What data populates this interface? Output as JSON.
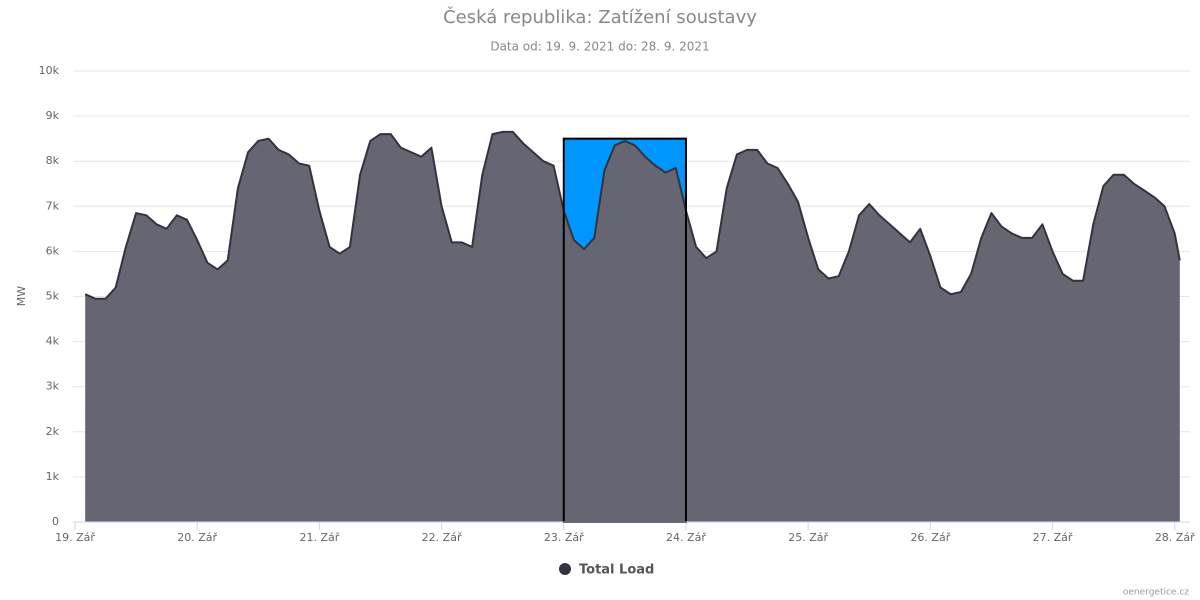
{
  "chart_data": {
    "type": "area",
    "title": "Česká republika: Zatížení soustavy",
    "subtitle": "Data od: 19. 9. 2021 do: 28. 9. 2021",
    "y_label": "MW",
    "credits": "oenergetice.cz",
    "grid": true,
    "legend": "bottom",
    "xlim": [
      0,
      219
    ],
    "xticks": [
      {
        "value": 0,
        "label": "19. Zář"
      },
      {
        "value": 24,
        "label": "20. Zář"
      },
      {
        "value": 48,
        "label": "21. Zář"
      },
      {
        "value": 72,
        "label": "22. Zář"
      },
      {
        "value": 96,
        "label": "23. Zář"
      },
      {
        "value": 120,
        "label": "24. Zář"
      },
      {
        "value": 144,
        "label": "25. Zář"
      },
      {
        "value": 168,
        "label": "26. Zář"
      },
      {
        "value": 192,
        "label": "27. Zář"
      },
      {
        "value": 216,
        "label": "28. Zář"
      }
    ],
    "ylim": [
      0,
      10000
    ],
    "yticks": [
      0,
      {
        "value": 1000,
        "label": "1k"
      },
      {
        "value": 2000,
        "label": "2k"
      },
      {
        "value": 3000,
        "label": "3k"
      },
      {
        "value": 4000,
        "label": "4k"
      },
      {
        "value": 5000,
        "label": "5k"
      },
      {
        "value": 6000,
        "label": "6k"
      },
      {
        "value": 7000,
        "label": "7k"
      },
      {
        "value": 8000,
        "label": "8k"
      },
      {
        "value": 9000,
        "label": "9k"
      },
      {
        "value": 10000,
        "label": "10k"
      }
    ],
    "highlight": {
      "x": [
        96,
        120
      ],
      "y": 8500,
      "color": "#0096ff"
    },
    "x": [
      2,
      4,
      6,
      8,
      10,
      12,
      14,
      16,
      18,
      20,
      22,
      24,
      26,
      28,
      30,
      32,
      34,
      36,
      38,
      40,
      42,
      44,
      46,
      48,
      50,
      52,
      54,
      56,
      58,
      60,
      62,
      64,
      66,
      68,
      70,
      72,
      74,
      76,
      78,
      80,
      82,
      84,
      86,
      88,
      90,
      92,
      94,
      96,
      98,
      100,
      102,
      104,
      106,
      108,
      110,
      112,
      114,
      116,
      118,
      120,
      122,
      124,
      126,
      128,
      130,
      132,
      134,
      136,
      138,
      140,
      142,
      144,
      146,
      148,
      150,
      152,
      154,
      156,
      158,
      160,
      162,
      164,
      166,
      168,
      170,
      172,
      174,
      176,
      178,
      180,
      182,
      184,
      186,
      188,
      190,
      192,
      194,
      196,
      198,
      200,
      202,
      204,
      206,
      208,
      210,
      212,
      214,
      216,
      217
    ],
    "series": [
      {
        "name": "Total Load",
        "color": "#333340",
        "fill": "#666672",
        "values": [
          5050,
          4950,
          4950,
          5200,
          6100,
          6850,
          6800,
          6600,
          6500,
          6800,
          6700,
          6250,
          5750,
          5600,
          5800,
          7400,
          8200,
          8450,
          8500,
          8250,
          8150,
          7950,
          7900,
          6900,
          6100,
          5950,
          6100,
          7700,
          8450,
          8600,
          8600,
          8300,
          8200,
          8100,
          8300,
          7000,
          6200,
          6200,
          6100,
          7700,
          8600,
          8650,
          8650,
          8400,
          8200,
          8000,
          7900,
          6900,
          6250,
          6050,
          6300,
          7800,
          8350,
          8450,
          8350,
          8100,
          7900,
          7750,
          7850,
          6900,
          6100,
          5850,
          6000,
          7400,
          8150,
          8250,
          8250,
          7950,
          7850,
          7500,
          7100,
          6300,
          5600,
          5400,
          5450,
          6000,
          6800,
          7050,
          6800,
          6600,
          6400,
          6200,
          6500,
          5900,
          5200,
          5050,
          5100,
          5500,
          6300,
          6850,
          6550,
          6400,
          6300,
          6300,
          6600,
          6000,
          5500,
          5350,
          5350,
          6600,
          7450,
          7700,
          7700,
          7500,
          7350,
          7200,
          7000,
          6400,
          5800
        ]
      }
    ]
  }
}
